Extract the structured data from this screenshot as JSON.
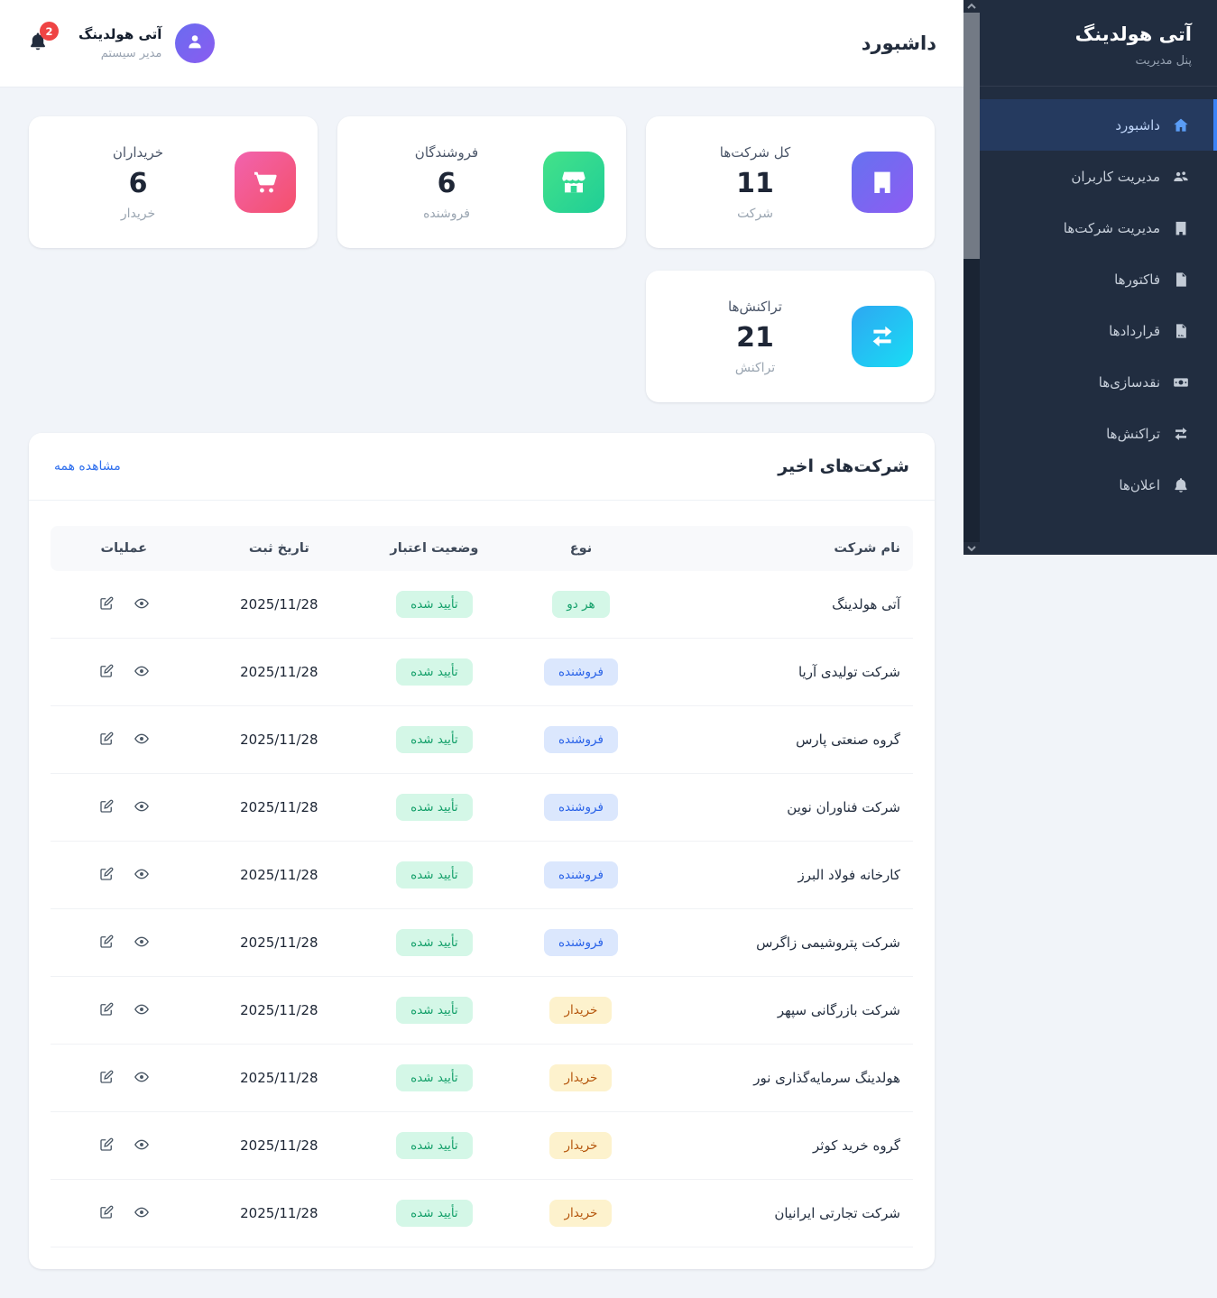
{
  "sidebar": {
    "title": "آتی هولدینگ",
    "subtitle": "پنل مدیریت",
    "items": [
      {
        "key": "dashboard",
        "label": "داشبورد",
        "icon": "home-icon",
        "active": true
      },
      {
        "key": "users",
        "label": "مدیریت کاربران",
        "icon": "users-icon",
        "active": false
      },
      {
        "key": "companies",
        "label": "مدیریت شرکت‌ها",
        "icon": "building-icon",
        "active": false
      },
      {
        "key": "invoices",
        "label": "فاکتورها",
        "icon": "invoice-icon",
        "active": false
      },
      {
        "key": "contracts",
        "label": "قراردادها",
        "icon": "contract-icon",
        "active": false
      },
      {
        "key": "liquidations",
        "label": "نقدسازی‌ها",
        "icon": "cash-icon",
        "active": false
      },
      {
        "key": "transactions",
        "label": "تراکنش‌ها",
        "icon": "transactions-icon",
        "active": false
      },
      {
        "key": "notifications",
        "label": "اعلان‌ها",
        "icon": "bell-icon",
        "active": false
      }
    ]
  },
  "topbar": {
    "page_title": "داشبورد",
    "user_name": "آتی هولدینگ",
    "user_role": "مدیر سیستم",
    "notification_count": "2"
  },
  "stats": [
    {
      "key": "total-companies",
      "title": "کل شرکت‌ها",
      "value": "11",
      "unit": "شرکت",
      "icon": "building-icon",
      "color_from": "#6672f0",
      "color_to": "#8d5cf2"
    },
    {
      "key": "sellers",
      "title": "فروشندگان",
      "value": "6",
      "unit": "فروشنده",
      "icon": "store-icon",
      "color_from": "#44e289",
      "color_to": "#1fce97"
    },
    {
      "key": "buyers",
      "title": "خریداران",
      "value": "6",
      "unit": "خریدار",
      "icon": "cart-icon",
      "color_from": "#f263ae",
      "color_to": "#f4506b"
    },
    {
      "key": "transactions",
      "title": "تراکنش‌ها",
      "value": "21",
      "unit": "تراکنش",
      "icon": "exchange-icon",
      "color_from": "#2ea7f2",
      "color_to": "#19ddf4"
    }
  ],
  "recent_companies": {
    "title": "شرکت‌های اخیر",
    "view_all_label": "مشاهده همه",
    "columns": [
      "نام شرکت",
      "نوع",
      "وضعیت اعتبار",
      "تاریخ ثبت",
      "عملیات"
    ],
    "action_icons": [
      "eye-icon",
      "edit-icon"
    ],
    "rows": [
      {
        "name": "آتی هولدینگ",
        "type_key": "both",
        "type": "هر دو",
        "status": "تأیید شده",
        "date": "2025/11/28"
      },
      {
        "name": "شرکت تولیدی آریا",
        "type_key": "seller",
        "type": "فروشنده",
        "status": "تأیید شده",
        "date": "2025/11/28"
      },
      {
        "name": "گروه صنعتی پارس",
        "type_key": "seller",
        "type": "فروشنده",
        "status": "تأیید شده",
        "date": "2025/11/28"
      },
      {
        "name": "شرکت فناوران نوین",
        "type_key": "seller",
        "type": "فروشنده",
        "status": "تأیید شده",
        "date": "2025/11/28"
      },
      {
        "name": "کارخانه فولاد البرز",
        "type_key": "seller",
        "type": "فروشنده",
        "status": "تأیید شده",
        "date": "2025/11/28"
      },
      {
        "name": "شرکت پتروشیمی زاگرس",
        "type_key": "seller",
        "type": "فروشنده",
        "status": "تأیید شده",
        "date": "2025/11/28"
      },
      {
        "name": "شرکت بازرگانی سپهر",
        "type_key": "buyer",
        "type": "خریدار",
        "status": "تأیید شده",
        "date": "2025/11/28"
      },
      {
        "name": "هولدینگ سرمایه‌گذاری نور",
        "type_key": "buyer",
        "type": "خریدار",
        "status": "تأیید شده",
        "date": "2025/11/28"
      },
      {
        "name": "گروه خرید کوثر",
        "type_key": "buyer",
        "type": "خریدار",
        "status": "تأیید شده",
        "date": "2025/11/28"
      },
      {
        "name": "شرکت تجارتی ایرانیان",
        "type_key": "buyer",
        "type": "خریدار",
        "status": "تأیید شده",
        "date": "2025/11/28"
      }
    ]
  },
  "colors": {
    "sidebar_bg": "#212d40",
    "sidebar_active_bg": "#253a5f",
    "accent_blue": "#3b82f6",
    "link_blue": "#2f6fed",
    "badge_green_bg": "#d4f7e7",
    "badge_green_text": "#14a06a",
    "badge_blue_bg": "#dbe7fd",
    "badge_blue_text": "#2a63e8",
    "badge_yellow_bg": "#fdf2cd",
    "badge_yellow_text": "#b4540a",
    "notification_red": "#ef4444"
  }
}
